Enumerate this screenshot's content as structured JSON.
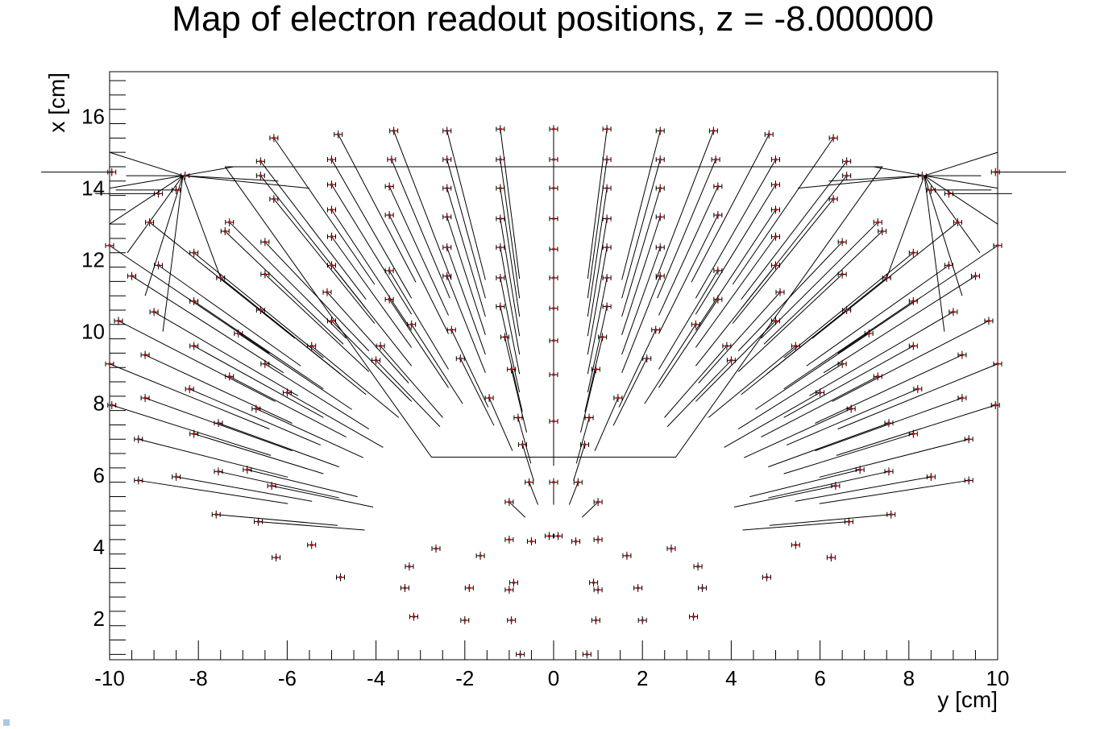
{
  "chart_data": {
    "type": "scatter",
    "title": "Map of electron readout positions, z = -8.000000",
    "xlabel": "y [cm]",
    "ylabel": "x [cm]",
    "xlim": [
      -10,
      10
    ],
    "ylim": [
      0.85,
      17.25
    ],
    "x_ticks": [
      -10,
      -8,
      -6,
      -4,
      -2,
      0,
      2,
      4,
      6,
      8,
      10
    ],
    "y_ticks": [
      2,
      4,
      6,
      8,
      10,
      12,
      14,
      16
    ],
    "grid": false,
    "marker_color": "#cc0000",
    "line_color": "#000000",
    "boundary": [
      [
        -7.4,
        14.6
      ],
      [
        7.4,
        14.6
      ],
      [
        2.75,
        6.5
      ],
      [
        -2.75,
        6.5
      ],
      [
        -7.4,
        14.6
      ]
    ],
    "right_half_points": [
      [
        0.5,
        4.15
      ],
      [
        0.75,
        1.0
      ],
      [
        0.9,
        3.0
      ],
      [
        0.95,
        1.95
      ],
      [
        0.55,
        5.8
      ],
      [
        0.0,
        5.8
      ],
      [
        1.0,
        2.8
      ],
      [
        1.0,
        5.25
      ],
      [
        0.0,
        7.5
      ],
      [
        0.8,
        7.6
      ],
      [
        0.0,
        8.8
      ],
      [
        0.95,
        8.95
      ],
      [
        1.45,
        8.15
      ],
      [
        0.0,
        9.75
      ],
      [
        1.1,
        9.85
      ],
      [
        2.1,
        9.25
      ],
      [
        0.0,
        10.65
      ],
      [
        1.2,
        10.7
      ],
      [
        2.3,
        10.05
      ],
      [
        0.0,
        11.5
      ],
      [
        1.2,
        11.5
      ],
      [
        2.4,
        11.55
      ],
      [
        3.2,
        10.2
      ],
      [
        0.0,
        12.3
      ],
      [
        1.2,
        12.35
      ],
      [
        2.4,
        12.35
      ],
      [
        0.0,
        13.15
      ],
      [
        1.2,
        13.15
      ],
      [
        2.4,
        13.2
      ],
      [
        3.7,
        13.25
      ],
      [
        0.0,
        14.0
      ],
      [
        1.2,
        14.0
      ],
      [
        2.4,
        14.0
      ],
      [
        0.0,
        14.8
      ],
      [
        1.2,
        14.8
      ],
      [
        2.4,
        14.8
      ],
      [
        0.0,
        15.65
      ],
      [
        1.2,
        15.65
      ],
      [
        2.4,
        15.6
      ],
      [
        1.0,
        4.2
      ],
      [
        1.65,
        3.75
      ],
      [
        2.65,
        3.95
      ],
      [
        3.25,
        3.45
      ],
      [
        3.35,
        2.85
      ],
      [
        3.15,
        2.05
      ],
      [
        1.9,
        2.85
      ],
      [
        2.0,
        1.95
      ],
      [
        0.7,
        6.85
      ],
      [
        0.1,
        4.3
      ],
      [
        3.6,
        15.6
      ],
      [
        4.85,
        15.5
      ],
      [
        6.3,
        15.4
      ],
      [
        3.65,
        14.8
      ],
      [
        5.0,
        14.8
      ],
      [
        6.6,
        14.75
      ],
      [
        3.7,
        14.05
      ],
      [
        5.0,
        14.1
      ],
      [
        6.6,
        14.35
      ],
      [
        3.7,
        11.7
      ],
      [
        3.7,
        10.9
      ],
      [
        3.9,
        9.6
      ],
      [
        4.0,
        9.2
      ],
      [
        5.0,
        13.4
      ],
      [
        5.0,
        12.65
      ],
      [
        5.0,
        11.85
      ],
      [
        5.1,
        11.1
      ],
      [
        5.0,
        10.3
      ],
      [
        5.45,
        9.6
      ],
      [
        6.0,
        8.3
      ],
      [
        6.3,
        13.7
      ],
      [
        6.5,
        12.5
      ],
      [
        6.5,
        11.6
      ],
      [
        6.6,
        10.6
      ],
      [
        6.5,
        9.1
      ],
      [
        6.7,
        7.85
      ],
      [
        6.9,
        6.15
      ],
      [
        6.35,
        5.7
      ],
      [
        6.65,
        4.7
      ],
      [
        5.45,
        4.05
      ],
      [
        6.25,
        3.7
      ],
      [
        4.8,
        3.15
      ],
      [
        7.3,
        13.05
      ],
      [
        7.4,
        12.8
      ],
      [
        7.5,
        11.5
      ],
      [
        7.1,
        9.95
      ],
      [
        7.3,
        8.75
      ],
      [
        7.55,
        7.45
      ],
      [
        7.55,
        6.1
      ],
      [
        7.6,
        4.9
      ],
      [
        8.1,
        12.2
      ],
      [
        8.1,
        10.85
      ],
      [
        8.1,
        9.6
      ],
      [
        8.2,
        8.4
      ],
      [
        8.1,
        7.15
      ],
      [
        8.5,
        5.95
      ],
      [
        8.3,
        14.35
      ],
      [
        8.5,
        13.95
      ],
      [
        8.9,
        13.85
      ],
      [
        8.9,
        11.85
      ],
      [
        9.0,
        10.55
      ],
      [
        9.2,
        9.35
      ],
      [
        9.2,
        8.15
      ],
      [
        9.35,
        7.0
      ],
      [
        9.35,
        5.85
      ],
      [
        9.1,
        13.05
      ],
      [
        9.5,
        11.55
      ],
      [
        9.8,
        10.3
      ],
      [
        10.0,
        9.1
      ],
      [
        9.95,
        7.95
      ],
      [
        9.95,
        14.45
      ],
      [
        10.0,
        12.4
      ]
    ]
  }
}
